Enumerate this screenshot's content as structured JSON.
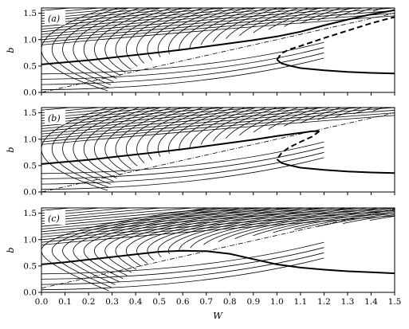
{
  "chart_data": {
    "type": "line",
    "xlabel": "W",
    "ylabel": "b",
    "xlim": [
      0.0,
      1.5
    ],
    "ylim": [
      0.0,
      1.6
    ],
    "x_ticks": [
      "0.0",
      "0.1",
      "0.2",
      "0.3",
      "0.4",
      "0.5",
      "0.6",
      "0.7",
      "0.8",
      "0.9",
      "1.0",
      "1.1",
      "1.2",
      "1.3",
      "1.4",
      "1.5"
    ],
    "y_ticks": [
      "0.0",
      "0.5",
      "1.0",
      "1.5"
    ],
    "legend": "none",
    "grid": false,
    "panels": [
      {
        "label": "(a)",
        "dash_dot_line": {
          "x": [
            0.0,
            1.5
          ],
          "y": [
            0.0,
            1.5
          ]
        },
        "thick_solid_upper": {
          "x": [
            0.0,
            0.1,
            0.2,
            0.3,
            0.4,
            0.5,
            0.6,
            0.7,
            0.8,
            0.9,
            1.0,
            1.1,
            1.2,
            1.3,
            1.4,
            1.5
          ],
          "y": [
            0.53,
            0.57,
            0.61,
            0.66,
            0.71,
            0.76,
            0.81,
            0.87,
            0.93,
            0.99,
            1.06,
            1.15,
            1.27,
            1.38,
            1.48,
            1.56
          ]
        },
        "thick_dashed_middle": {
          "x": [
            1.0,
            1.02,
            1.05,
            1.1,
            1.2,
            1.3,
            1.4,
            1.5
          ],
          "y": [
            0.62,
            0.74,
            0.81,
            0.88,
            1.03,
            1.17,
            1.31,
            1.43
          ]
        },
        "thick_solid_lower": {
          "x": [
            1.0,
            1.02,
            1.05,
            1.1,
            1.2,
            1.3,
            1.4,
            1.5
          ],
          "y": [
            0.62,
            0.55,
            0.51,
            0.46,
            0.42,
            0.39,
            0.37,
            0.36
          ]
        }
      },
      {
        "label": "(b)",
        "dash_dot_line": {
          "x": [
            0.0,
            1.5
          ],
          "y": [
            0.0,
            1.5
          ]
        },
        "thick_solid_upper": {
          "x": [
            0.0,
            0.1,
            0.2,
            0.3,
            0.4,
            0.5,
            0.6,
            0.7,
            0.8,
            0.9,
            1.0,
            1.1,
            1.15,
            1.18
          ],
          "y": [
            0.53,
            0.57,
            0.61,
            0.66,
            0.71,
            0.76,
            0.81,
            0.87,
            0.93,
            0.99,
            1.06,
            1.12,
            1.15,
            1.15
          ]
        },
        "thick_dashed_middle": {
          "x": [
            1.18,
            1.15,
            1.1,
            1.05,
            1.02,
            1.0
          ],
          "y": [
            1.15,
            1.05,
            0.95,
            0.84,
            0.74,
            0.62
          ]
        },
        "thick_solid_lower": {
          "x": [
            1.0,
            1.02,
            1.05,
            1.1,
            1.2,
            1.3,
            1.4,
            1.5
          ],
          "y": [
            0.62,
            0.55,
            0.51,
            0.46,
            0.42,
            0.39,
            0.37,
            0.36
          ]
        }
      },
      {
        "label": "(c)",
        "dash_dot_line": {
          "x": [
            0.0,
            1.5
          ],
          "y": [
            0.08,
            1.58
          ]
        },
        "thick_solid": {
          "x": [
            0.0,
            0.1,
            0.2,
            0.3,
            0.4,
            0.5,
            0.6,
            0.7,
            0.8,
            0.9,
            1.0,
            1.1,
            1.2,
            1.3,
            1.4,
            1.5
          ],
          "y": [
            0.53,
            0.57,
            0.62,
            0.67,
            0.72,
            0.77,
            0.79,
            0.78,
            0.73,
            0.63,
            0.53,
            0.47,
            0.43,
            0.4,
            0.38,
            0.36
          ]
        }
      }
    ]
  }
}
